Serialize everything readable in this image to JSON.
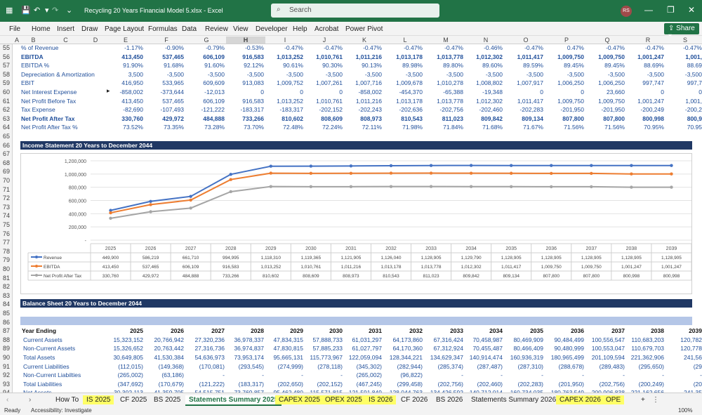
{
  "title_bar": {
    "filename": "Recycling 20 Years Financial Model 5.xlsx",
    "app": "Excel",
    "separator": "-",
    "search_placeholder": "Search",
    "user_initials": "RS"
  },
  "menu": {
    "items": [
      "File",
      "Home",
      "Insert",
      "Draw",
      "Page Layout",
      "Formulas",
      "Data",
      "Review",
      "View",
      "Developer",
      "Help",
      "Acrobat",
      "Power Pivot"
    ],
    "share": "Share"
  },
  "columns": [
    "A",
    "B",
    "C",
    "D",
    "E",
    "F",
    "G",
    "H",
    "I",
    "J",
    "K",
    "L",
    "M",
    "N",
    "O",
    "P",
    "Q",
    "R",
    "S"
  ],
  "rows": [
    {
      "n": "55",
      "label": "% of Revenue",
      "bold": false,
      "blue": true,
      "v": [
        "-1.17%",
        "-0.90%",
        "-0.79%",
        "-0.53%",
        "-0.47%",
        "-0.47%",
        "-0.47%",
        "-0.47%",
        "-0.47%",
        "-0.46%",
        "-0.47%",
        "0.47%",
        "-0.47%",
        "-0.47%",
        "-0.47%"
      ]
    },
    {
      "n": "56",
      "label": "EBITDA",
      "bold": true,
      "blue": true,
      "v": [
        "413,450",
        "537,465",
        "606,109",
        "916,583",
        "1,013,252",
        "1,010,761",
        "1,011,216",
        "1,013,178",
        "1,013,778",
        "1,012,302",
        "1,011,417",
        "1,009,750",
        "1,009,750",
        "1,001,247",
        "1,001,"
      ]
    },
    {
      "n": "57",
      "label": "EBITDA %",
      "bold": false,
      "blue": true,
      "v": [
        "91.90%",
        "91.68%",
        "91.60%",
        "92.12%",
        "90.61%",
        "90.30%",
        "90.13%",
        "89.98%",
        "89.80%",
        "89.60%",
        "89.59%",
        "89.45%",
        "89.45%",
        "88.69%",
        "88.69"
      ]
    },
    {
      "n": "58",
      "label": "Depreciation & Amortization",
      "bold": false,
      "blue": true,
      "v": [
        "3,500",
        "-3,500",
        "-3,500",
        "-3,500",
        "-3,500",
        "-3,500",
        "-3,500",
        "-3,500",
        "-3,500",
        "-3,500",
        "-3,500",
        "-3,500",
        "-3,500",
        "-3,500",
        "-3,500"
      ]
    },
    {
      "n": "59",
      "label": "EBIT",
      "bold": false,
      "blue": true,
      "v": [
        "416,950",
        "533,965",
        "609,609",
        "913,083",
        "1,009,752",
        "1,007,261",
        "1,007,716",
        "1,009,678",
        "1,010,278",
        "1,008,802",
        "1,007,917",
        "1,006,250",
        "1,006,250",
        "997,747",
        "997,7"
      ]
    },
    {
      "n": "60",
      "label": "Net Interest Expense",
      "bold": false,
      "blue": true,
      "v": [
        "-858,002",
        "-373,644",
        "-12,013",
        "0",
        "0",
        "0",
        "-858,002",
        "-454,370",
        "-65,388",
        "-19,348",
        "0",
        "0",
        "23,660",
        "0",
        "0"
      ]
    },
    {
      "n": "61",
      "label": "Net Profit Before Tax",
      "bold": false,
      "blue": true,
      "v": [
        "413,450",
        "537,465",
        "606,109",
        "916,583",
        "1,013,252",
        "1,010,761",
        "1,011,216",
        "1,013,178",
        "1,013,778",
        "1,012,302",
        "1,011,417",
        "1,009,750",
        "1,009,750",
        "1,001,247",
        "1,001,"
      ]
    },
    {
      "n": "62",
      "label": "Tax Expense",
      "bold": false,
      "blue": true,
      "v": [
        "-82,690",
        "-107,493",
        "-121,222",
        "-183,317",
        "-183,317",
        "-202,152",
        "-202,243",
        "-202,636",
        "-202,756",
        "-202,460",
        "-202,283",
        "-201,950",
        "-201,950",
        "-200,249",
        "-200,2"
      ]
    },
    {
      "n": "63",
      "label": "Net Profit After Tax",
      "bold": true,
      "blue": true,
      "v": [
        "330,760",
        "429,972",
        "484,888",
        "733,266",
        "810,602",
        "808,609",
        "808,973",
        "810,543",
        "811,023",
        "809,842",
        "809,134",
        "807,800",
        "807,800",
        "800,998",
        "800,9"
      ]
    },
    {
      "n": "64",
      "label": "Net Profit After Tax %",
      "bold": false,
      "blue": true,
      "v": [
        "73.52%",
        "73.35%",
        "73.28%",
        "73.70%",
        "72.48%",
        "72.24%",
        "72.11%",
        "71.98%",
        "71.84%",
        "71.68%",
        "71.67%",
        "71.56%",
        "71.56%",
        "70.95%",
        "70.95"
      ]
    }
  ],
  "chart_section": {
    "title": "Income Statement 20 Years to December 2044"
  },
  "chart_data": {
    "type": "line",
    "categories": [
      "2025",
      "2026",
      "2027",
      "2028",
      "2029",
      "2030",
      "2031",
      "2032",
      "2033",
      "2034",
      "2035",
      "2036",
      "2037",
      "2038",
      "2039"
    ],
    "series": [
      {
        "name": "Revenue",
        "color": "#4472c4",
        "values": [
          449900,
          586219,
          661710,
          994995,
          1118310,
          1119365,
          1121905,
          1126040,
          1128905,
          1129790,
          1128905,
          1128905,
          1128905,
          1128905,
          1128905
        ]
      },
      {
        "name": "EBITDA",
        "color": "#ed7d31",
        "values": [
          413450,
          537465,
          606109,
          916583,
          1013252,
          1010761,
          1011216,
          1013178,
          1013778,
          1012302,
          1011417,
          1009750,
          1009750,
          1001247,
          1001247
        ]
      },
      {
        "name": "Net Profit After Tax",
        "color": "#a5a5a5",
        "values": [
          330760,
          429972,
          484888,
          733266,
          810602,
          808609,
          808973,
          810543,
          811023,
          809842,
          809134,
          807800,
          807800,
          800998,
          800998
        ]
      }
    ],
    "ylim": [
      0,
      1200000
    ],
    "yticks": [
      "1,200,000",
      "1,000,000",
      "800,000",
      "600,000",
      "400,000",
      "200,000",
      "-"
    ],
    "grid": true,
    "legend": "data table",
    "table": [
      [
        "449,900",
        "586,219",
        "661,710",
        "994,995",
        "1,118,310",
        "1,119,365",
        "1,121,905",
        "1,126,040",
        "1,128,905",
        "1,129,790",
        "1,128,905",
        "1,128,905",
        "1,128,905",
        "1,128,905",
        "1,128,905"
      ],
      [
        "413,450",
        "537,465",
        "606,109",
        "916,583",
        "1,013,252",
        "1,010,761",
        "1,011,216",
        "1,013,178",
        "1,013,778",
        "1,012,302",
        "1,011,417",
        "1,009,750",
        "1,009,750",
        "1,001,247",
        "1,001,247"
      ],
      [
        "330,760",
        "429,972",
        "484,888",
        "733,266",
        "810,602",
        "808,609",
        "808,973",
        "810,543",
        "811,023",
        "809,842",
        "809,134",
        "807,800",
        "807,800",
        "800,998",
        "800,998"
      ]
    ]
  },
  "balance": {
    "title": "Balance Sheet 20 Years to December 2044",
    "header_label": "Year Ending",
    "years": [
      "2025",
      "2026",
      "2027",
      "2028",
      "2029",
      "2030",
      "2031",
      "2032",
      "2033",
      "2034",
      "2035",
      "2036",
      "2037",
      "2038",
      "2039"
    ],
    "rows": [
      {
        "n": "88",
        "label": "Current Assets",
        "v": [
          "15,323,152",
          "20,766,942",
          "27,320,236",
          "36,978,337",
          "47,834,315",
          "57,888,733",
          "61,031,297",
          "64,173,860",
          "67,316,424",
          "70,458,987",
          "80,469,909",
          "90,484,499",
          "100,556,547",
          "110,683,203",
          "120,782"
        ]
      },
      {
        "n": "89",
        "label": "Non-Current Assets",
        "v": [
          "15,326,652",
          "20,763,442",
          "27,316,736",
          "36,974,837",
          "47,830,815",
          "57,885,233",
          "61,027,797",
          "64,170,360",
          "67,312,924",
          "70,455,487",
          "80,466,409",
          "90,480,999",
          "100,553,047",
          "110,679,703",
          "120,778"
        ]
      },
      {
        "n": "90",
        "label": "Total Assets",
        "v": [
          "30,649,805",
          "41,530,384",
          "54,636,973",
          "73,953,174",
          "95,665,131",
          "115,773,967",
          "122,059,094",
          "128,344,221",
          "134,629,347",
          "140,914,474",
          "160,936,319",
          "180,965,499",
          "201,109,594",
          "221,362,906",
          "241,56"
        ]
      },
      {
        "n": "91",
        "label": "Current Liabilities",
        "v": [
          "(112,015)",
          "(149,368)",
          "(170,081)",
          "(293,545)",
          "(274,999)",
          "(278,118)",
          "(345,302)",
          "(282,944)",
          "(285,374)",
          "(287,487)",
          "(287,310)",
          "(288,678)",
          "(289,483)",
          "(295,650)",
          "(29"
        ]
      },
      {
        "n": "92",
        "label": "Non-Current Liabilties",
        "v": [
          "(265,002)",
          "(63,186)",
          "-",
          "-",
          "-",
          "-",
          "(265,002)",
          "(96,822)",
          "-",
          "-",
          "-",
          "-",
          "-",
          "-",
          "-"
        ]
      },
      {
        "n": "93",
        "label": "Total Liabilities",
        "v": [
          "(347,692)",
          "(170,679)",
          "(121,222)",
          "(183,317)",
          "(202,650)",
          "(202,152)",
          "(467,245)",
          "(299,458)",
          "(202,756)",
          "(202,460)",
          "(202,283)",
          "(201,950)",
          "(202,756)",
          "(200,249)",
          "(20"
        ]
      },
      {
        "n": "94",
        "label": "Net Assets",
        "v": [
          "30,302,113",
          "41,359,705",
          "54,515,751",
          "73,769,857",
          "95,462,480",
          "115,571,815",
          "121,591,849",
          "128,044,763",
          "134,426,592",
          "140,712,014",
          "160,734,035",
          "180,763,549",
          "200,906,838",
          "221,162,656",
          "241,35"
        ]
      },
      {
        "n": "95",
        "label": "Net Current Assets",
        "v": [
          "15,333,152",
          "20,766,942",
          "27,320,236",
          "36,978,337",
          "47,834,315",
          "57,888,733",
          "61,031,297",
          "64,173,860",
          "67,316,424",
          "70,458,987",
          "80,469,909",
          "90,484,499",
          "100,556,547",
          "110,683,203",
          "120,78"
        ]
      }
    ]
  },
  "row_numbers": [
    "65",
    "66",
    "67",
    "68",
    "69",
    "70",
    "71",
    "72",
    "73",
    "74",
    "75",
    "76",
    "77",
    "78",
    "79",
    "80",
    "81",
    "82",
    "83",
    "84",
    "85",
    "86",
    "87"
  ],
  "tabs": [
    "How To",
    "IS 2025",
    "CF 2025",
    "BS 2025",
    "Statements Summary 2025",
    "CAPEX 2025",
    "OPEX 2025",
    "IS 2026",
    "CF 2026",
    "BS 2026",
    "Statements Summary 2026",
    "CAPEX 2026",
    "OPE"
  ],
  "status": {
    "ready": "Ready",
    "accessibility": "Accessibility: Investigate",
    "zoom": "100%"
  }
}
